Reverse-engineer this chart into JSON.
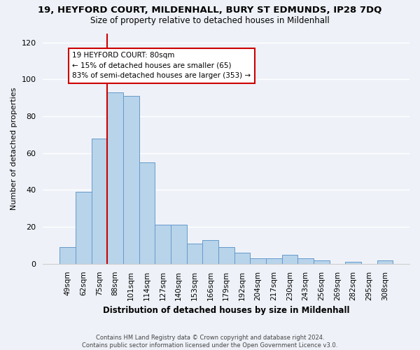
{
  "title": "19, HEYFORD COURT, MILDENHALL, BURY ST EDMUNDS, IP28 7DQ",
  "subtitle": "Size of property relative to detached houses in Mildenhall",
  "xlabel": "Distribution of detached houses by size in Mildenhall",
  "ylabel": "Number of detached properties",
  "bar_labels": [
    "49sqm",
    "62sqm",
    "75sqm",
    "88sqm",
    "101sqm",
    "114sqm",
    "127sqm",
    "140sqm",
    "153sqm",
    "166sqm",
    "179sqm",
    "192sqm",
    "204sqm",
    "217sqm",
    "230sqm",
    "243sqm",
    "256sqm",
    "269sqm",
    "282sqm",
    "295sqm",
    "308sqm"
  ],
  "bar_values": [
    9,
    39,
    68,
    93,
    91,
    55,
    21,
    21,
    11,
    13,
    9,
    6,
    3,
    3,
    5,
    3,
    2,
    0,
    1,
    0,
    2
  ],
  "bar_color": "#b8d4ea",
  "bar_edge_color": "#6699cc",
  "vline_color": "#cc0000",
  "annotation_line1": "19 HEYFORD COURT: 80sqm",
  "annotation_line2": "← 15% of detached houses are smaller (65)",
  "annotation_line3": "83% of semi-detached houses are larger (353) →",
  "annotation_box_color": "#ffffff",
  "annotation_box_edge": "#cc0000",
  "ylim": [
    0,
    125
  ],
  "yticks": [
    0,
    20,
    40,
    60,
    80,
    100,
    120
  ],
  "footer": "Contains HM Land Registry data © Crown copyright and database right 2024.\nContains public sector information licensed under the Open Government Licence v3.0.",
  "background_color": "#eef2f8"
}
